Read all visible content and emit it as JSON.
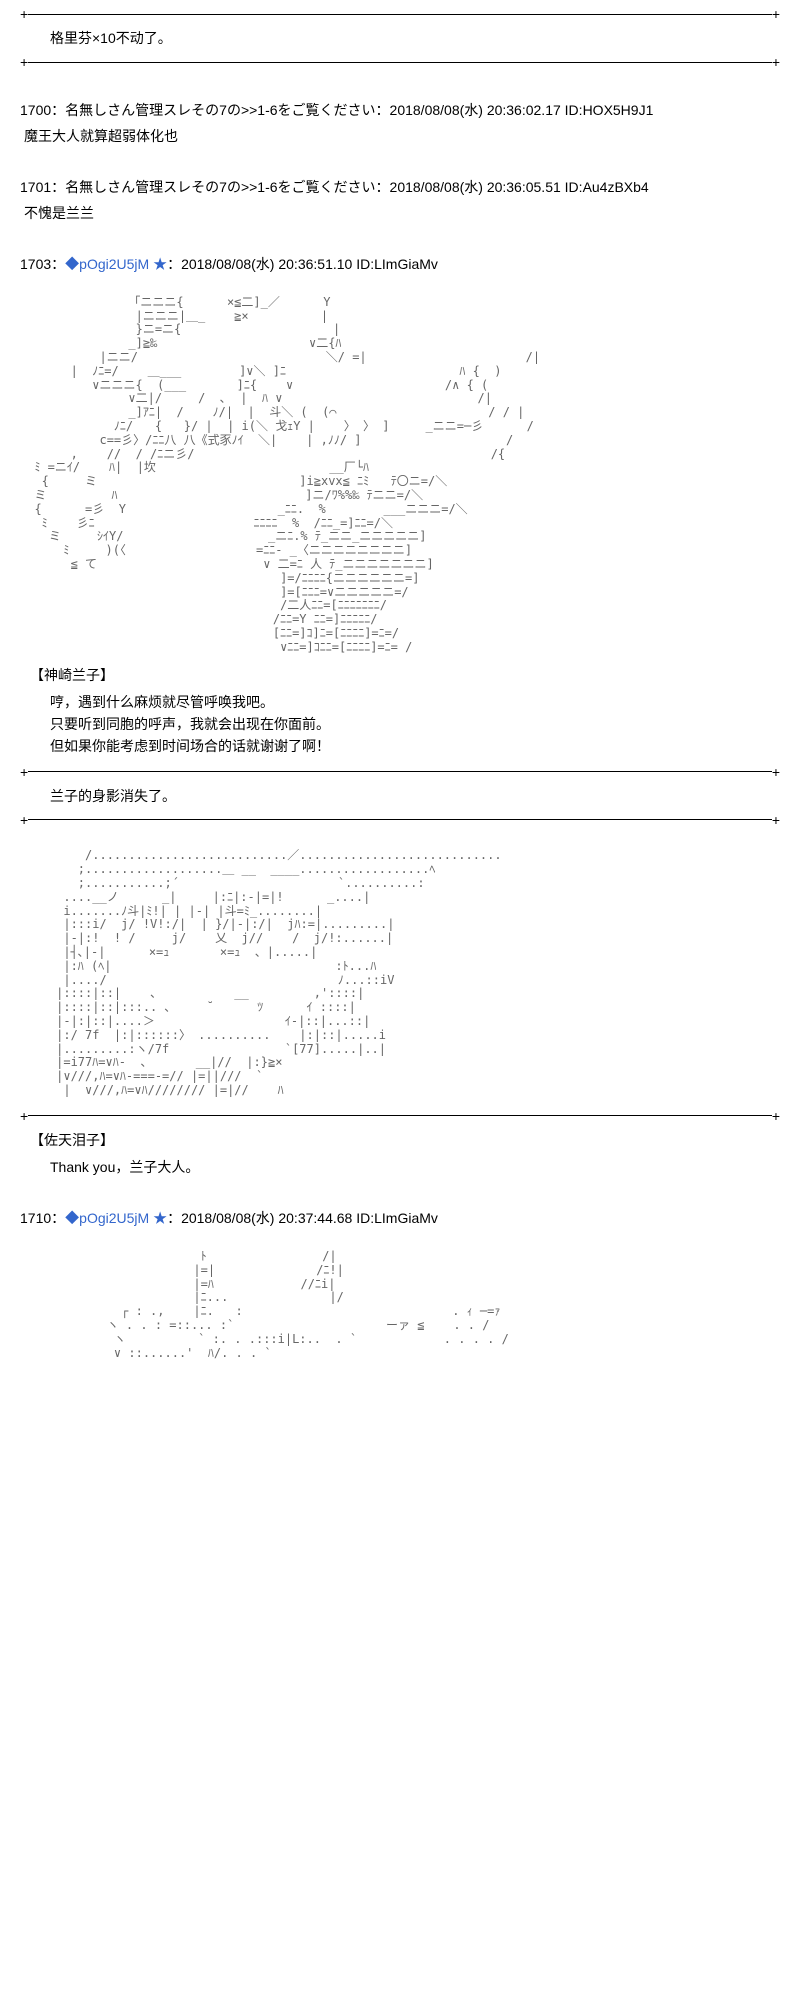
{
  "posts": [
    {
      "narration_top": "格里芬×10不动了。"
    },
    {
      "num": "1700",
      "name": "名無しさん管理スレその7の>>1-6をご覧ください",
      "date": "2018/08/08(水) 20:36:02.17",
      "id": "HOX5H9J1",
      "body": "魔王大人就算超弱体化也"
    },
    {
      "num": "1701",
      "name": "名無しさん管理スレその7の>>1-6をご覧ください",
      "date": "2018/08/08(水) 20:36:05.51",
      "id": "Au4zBXb4",
      "body": "不愧是兰兰"
    },
    {
      "num": "1703",
      "trip": "pOgi2U5jM",
      "date": "2018/08/08(水) 20:36:51.10",
      "id": "LImGiaMv",
      "char_name": "【神崎兰子】",
      "lines": [
        "哼，遇到什么麻烦就尽管呼唤我吧。",
        "只要听到同胞的呼声，我就会出现在你面前。",
        "但如果你能考虑到时间场合的话就谢谢了啊！"
      ],
      "narration": "兰子的身影消失了。",
      "char2_name": "【佐天泪子】",
      "char2_line": "Thank you，兰子大人。"
    },
    {
      "num": "1710",
      "trip": "pOgi2U5jM",
      "date": "2018/08/08(水) 20:37:44.68",
      "id": "LImGiaMv"
    }
  ],
  "colors": {
    "link": "#3366cc",
    "text": "#000000",
    "aa": "#666666",
    "bg": "#ffffff"
  }
}
